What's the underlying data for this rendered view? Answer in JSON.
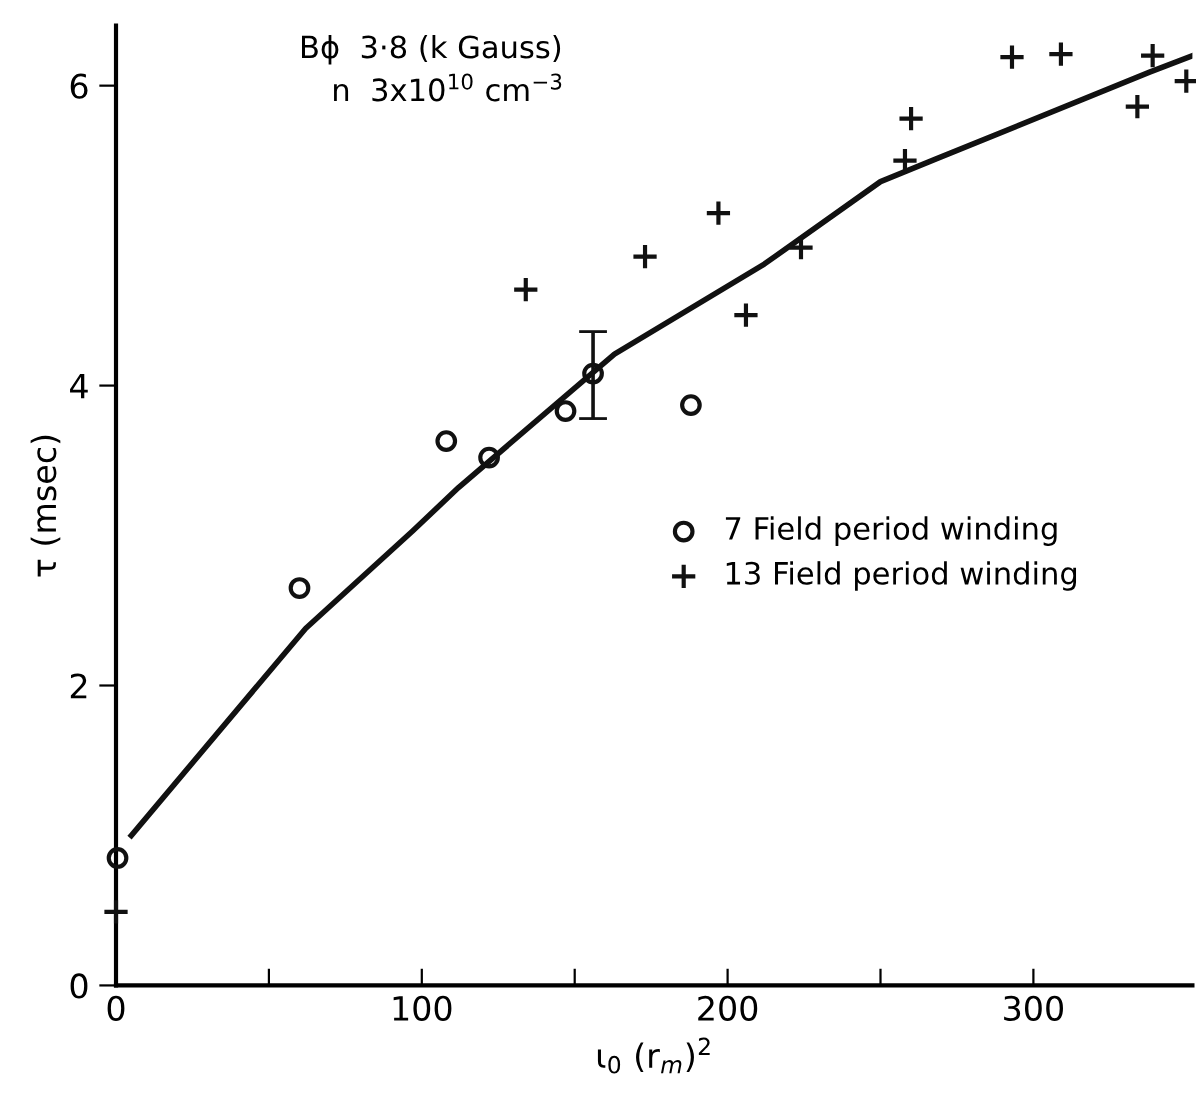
{
  "chart_data": {
    "type": "scatter",
    "xlabel": "ι$_{0}$ (r$_{m}$)$^{2}$",
    "ylabel": "τ (msec)",
    "annotations": [
      "Bϕ  3·8 (k Gauss)",
      "n  3x10$^{10}$ cm$^{−3}$"
    ],
    "series": [
      {
        "name": "7 Field period winding",
        "marker": "circle",
        "color": "#111111",
        "x": [
          0.5,
          60,
          108,
          122,
          147,
          156,
          188
        ],
        "values": [
          0.85,
          2.65,
          3.63,
          3.52,
          3.83,
          4.08,
          3.87
        ],
        "errors": [
          null,
          null,
          null,
          null,
          null,
          [
            3.78,
            4.36
          ],
          null
        ]
      },
      {
        "name": "13 Field period winding",
        "marker": "cross",
        "color": "#111111",
        "x": [
          0,
          134,
          173,
          197,
          206,
          224,
          258,
          260,
          293,
          309,
          334,
          339,
          350
        ],
        "values": [
          0.49,
          4.64,
          4.86,
          5.15,
          4.47,
          4.92,
          5.5,
          5.78,
          6.19,
          6.21,
          5.86,
          6.2,
          6.03
        ]
      },
      {
        "type": "line",
        "color": "#111111",
        "x": [
          5,
          62,
          97,
          112,
          163,
          212,
          250,
          268,
          338,
          352
        ],
        "values": [
          1.0,
          2.38,
          3.03,
          3.32,
          4.21,
          4.81,
          5.36,
          5.51,
          6.09,
          6.2
        ]
      }
    ],
    "xlim": [
      0,
      352
    ],
    "ylim": [
      0,
      6.4
    ],
    "xticks": [
      0,
      {
        "value": 50,
        "label": null
      },
      100,
      {
        "value": 150,
        "label": null
      },
      200,
      {
        "value": 250,
        "label": null
      },
      300
    ],
    "yticks": [
      0,
      2,
      4,
      6
    ],
    "grid": false,
    "legend": "right"
  }
}
